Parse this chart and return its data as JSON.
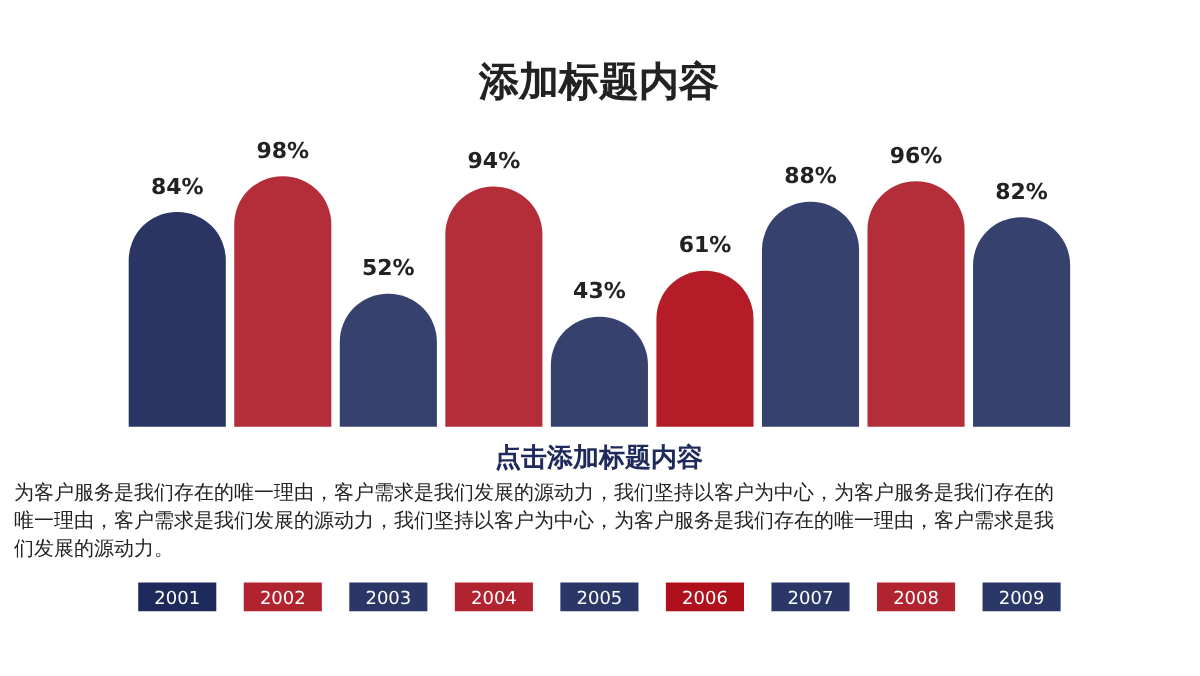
{
  "chart_data": {
    "type": "bar",
    "title": "添加标题内容",
    "subtitle": "点击添加标题内容",
    "categories": [
      "2001",
      "2002",
      "2003",
      "2004",
      "2005",
      "2006",
      "2007",
      "2008",
      "2009"
    ],
    "values": [
      84,
      98,
      52,
      94,
      43,
      61,
      88,
      96,
      82
    ],
    "value_labels": [
      "84%",
      "98%",
      "52%",
      "94%",
      "43%",
      "61%",
      "88%",
      "96%",
      "82%"
    ],
    "colors": [
      "#1f2a5c",
      "#b0232f",
      "#2b3766",
      "#b0232f",
      "#2b3766",
      "#b0101c",
      "#2b3766",
      "#b0232f",
      "#2b3766"
    ],
    "annotations": [
      "为客户服务是我们存在的唯一理由，客户需求是我们发展的源动力，我们坚持以客户为中心，为客户服务是我们存在的唯一理由，客户需求是我们发展的源动力，我们坚持以客户为中心，为客户服务是我们存在的唯一理由，客户需求是我们发展的源动力。"
    ]
  }
}
